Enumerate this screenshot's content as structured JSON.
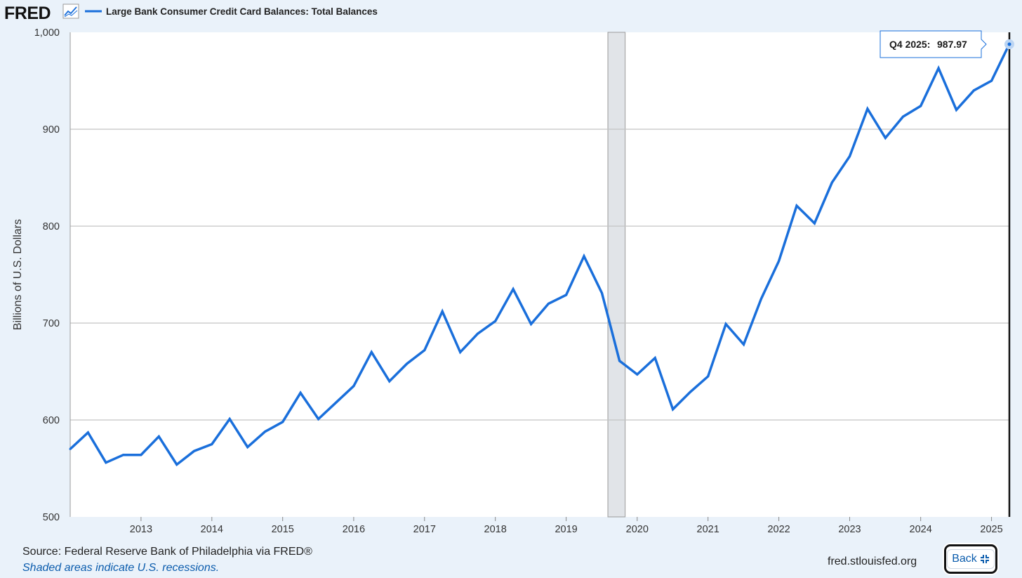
{
  "header": {
    "logo_text": "FRED",
    "logo_icon": "line-chart-icon",
    "series_title": "Large Bank Consumer Credit Card Balances: Total Balances"
  },
  "footer": {
    "source": "Source: Federal Reserve Bank of Philadelphia via FRED®",
    "shade_note": "Shaded areas indicate U.S. recessions.",
    "site": "fred.stlouisfed.org",
    "back_label": "Back",
    "back_icon": "compress-icon"
  },
  "tooltip": {
    "period": "Q4 2025:",
    "value": "987.97"
  },
  "colors": {
    "line": "#1a6fdb",
    "recession": "#e1e4e8",
    "background": "#eaf2fa",
    "plot": "#ffffff",
    "grid": "#c4c4c4",
    "link": "#0b5cad"
  },
  "chart_data": {
    "type": "line",
    "title": "Large Bank Consumer Credit Card Balances: Total Balances",
    "ylabel": "Billions of U.S. Dollars",
    "xlabel": "",
    "ylim": [
      500,
      1000
    ],
    "yticks": [
      500,
      600,
      700,
      800,
      900,
      1000
    ],
    "ytick_labels": [
      "500",
      "600",
      "700",
      "800",
      "900",
      "1,000"
    ],
    "xticks": [
      "2013",
      "2014",
      "2015",
      "2016",
      "2017",
      "2018",
      "2019",
      "2020",
      "2021",
      "2022",
      "2023",
      "2024",
      "2025"
    ],
    "grid": true,
    "recessions": [
      {
        "start": "2020-02-01",
        "end": "2020-04-30"
      }
    ],
    "series": [
      {
        "name": "Large Bank Consumer Credit Card Balances: Total Balances",
        "x": [
          "2012-07-01",
          "2012-10-01",
          "2013-01-01",
          "2013-04-01",
          "2013-07-01",
          "2013-10-01",
          "2014-01-01",
          "2014-04-01",
          "2014-07-01",
          "2014-10-01",
          "2015-01-01",
          "2015-04-01",
          "2015-07-01",
          "2015-10-01",
          "2016-01-01",
          "2016-04-01",
          "2016-07-01",
          "2016-10-01",
          "2017-01-01",
          "2017-04-01",
          "2017-07-01",
          "2017-10-01",
          "2018-01-01",
          "2018-04-01",
          "2018-07-01",
          "2018-10-01",
          "2019-01-01",
          "2019-04-01",
          "2019-07-01",
          "2019-10-01",
          "2020-01-01",
          "2020-04-01",
          "2020-07-01",
          "2020-10-01",
          "2021-01-01",
          "2021-04-01",
          "2021-07-01",
          "2021-10-01",
          "2022-01-01",
          "2022-04-01",
          "2022-07-01",
          "2022-10-01",
          "2023-01-01",
          "2023-04-01",
          "2023-07-01",
          "2023-10-01",
          "2024-01-01",
          "2024-04-01",
          "2024-07-01",
          "2024-10-01",
          "2025-01-01",
          "2025-04-01",
          "2025-07-01",
          "2025-10-01"
        ],
        "values": [
          570,
          587,
          556,
          564,
          564,
          583,
          554,
          568,
          575,
          601,
          572,
          588,
          598,
          628,
          601,
          618,
          635,
          670,
          640,
          658,
          672,
          712,
          670,
          689,
          702,
          735,
          699,
          720,
          729,
          769,
          731,
          661,
          647,
          664,
          611,
          629,
          645,
          699,
          678,
          725,
          764,
          821,
          803,
          845,
          872,
          921,
          891,
          913,
          924,
          963,
          920,
          940,
          950,
          988
        ]
      }
    ]
  }
}
